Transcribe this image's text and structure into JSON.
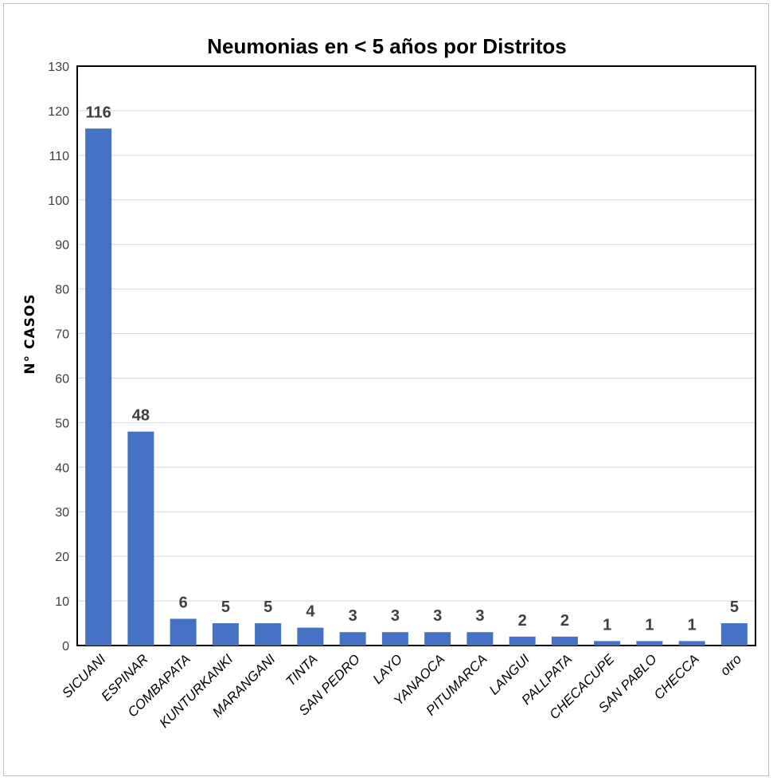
{
  "chart_data": {
    "type": "bar",
    "title": "Neumonias en < 5 años por Distritos",
    "xlabel": "",
    "ylabel": "N° CASOS",
    "categories": [
      "SICUANI",
      "ESPINAR",
      "COMBAPATA",
      "KUNTURKANKI",
      "MARANGANI",
      "TINTA",
      "SAN PEDRO",
      "LAYO",
      "YANAOCA",
      "PITUMARCA",
      "LANGUI",
      "PALLPATA",
      "CHECACUPE",
      "SAN PABLO",
      "CHECCA",
      "otro"
    ],
    "values": [
      116,
      48,
      6,
      5,
      5,
      4,
      3,
      3,
      3,
      3,
      2,
      2,
      1,
      1,
      1,
      5
    ],
    "ylim": [
      0,
      130
    ],
    "yticks": [
      0,
      10,
      20,
      30,
      40,
      50,
      60,
      70,
      80,
      90,
      100,
      110,
      120,
      130
    ],
    "grid": true,
    "legend": "none",
    "bar_color": "#4472c4"
  }
}
